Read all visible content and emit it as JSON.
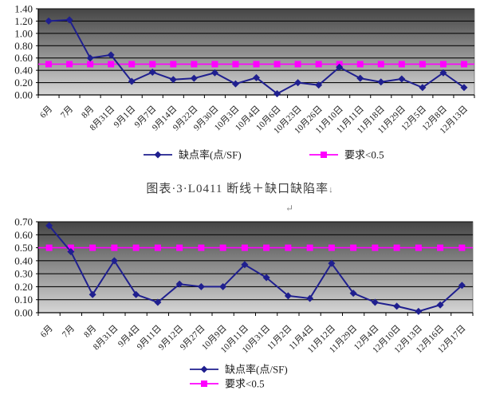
{
  "caption": {
    "text": "图表·3·L0411 断线＋缺口缺陷率",
    "line_break_mark": "↓",
    "return_mark": "↵"
  },
  "colors": {
    "defect_series": "#1f1f8f",
    "requirement_series": "#ff00ff",
    "gridline": "#0a0a0a",
    "plot_wall_top": "#454545",
    "plot_wall_bottom": "#d6d6d6",
    "text": "#1a1a1a"
  },
  "chart_data": [
    {
      "type": "line",
      "title": "",
      "ylim": [
        0,
        1.4
      ],
      "ytick_labels": [
        "1.40",
        "1.20",
        "1.00",
        "0.80",
        "0.60",
        "0.40",
        "0.20",
        "0.00"
      ],
      "grid": true,
      "legend_position": "bottom-horizontal",
      "categories": [
        "6月",
        "7月",
        "8月",
        "8月31日",
        "9月1日",
        "9月7日",
        "9月14日",
        "9月22日",
        "9月30日",
        "10月3日",
        "10月4日",
        "10月6日",
        "10月23日",
        "10月26日",
        "11月10日",
        "11月11日",
        "11月18日",
        "11月29日",
        "12月5日",
        "12月8日",
        "12月13日"
      ],
      "series": [
        {
          "name": "缺点率(点/SF)",
          "marker": "diamond",
          "color": "#1f1f8f",
          "values": [
            1.2,
            1.22,
            0.6,
            0.65,
            0.22,
            0.37,
            0.25,
            0.27,
            0.36,
            0.18,
            0.28,
            0.02,
            0.2,
            0.16,
            0.45,
            0.27,
            0.21,
            0.26,
            0.12,
            0.36,
            0.12
          ]
        },
        {
          "name": "要求<0.5",
          "marker": "square",
          "color": "#ff00ff",
          "constant": 0.5
        }
      ]
    },
    {
      "type": "line",
      "title": "",
      "ylim": [
        0,
        0.7
      ],
      "ytick_labels": [
        "0.70",
        "0.60",
        "0.50",
        "0.40",
        "0.30",
        "0.20",
        "0.10",
        "0.00"
      ],
      "grid": true,
      "legend_position": "bottom-stacked",
      "categories": [
        "6月",
        "7月",
        "8月",
        "8月31日",
        "9月4日",
        "9月11日",
        "9月12日",
        "9月27日",
        "10月9日",
        "10月11日",
        "10月31日",
        "11月2日",
        "11月4日",
        "11月12日",
        "11月29日",
        "12月4日",
        "12月10日",
        "12月13日",
        "12月16日",
        "12月17日"
      ],
      "series": [
        {
          "name": "缺点率(点/SF)",
          "marker": "diamond",
          "color": "#1f1f8f",
          "values": [
            0.67,
            0.47,
            0.14,
            0.4,
            0.14,
            0.08,
            0.22,
            0.2,
            0.2,
            0.37,
            0.27,
            0.13,
            0.11,
            0.38,
            0.15,
            0.08,
            0.05,
            0.01,
            0.06,
            0.21
          ]
        },
        {
          "name": "要求<0.5",
          "marker": "square",
          "color": "#ff00ff",
          "constant": 0.5
        }
      ]
    }
  ]
}
